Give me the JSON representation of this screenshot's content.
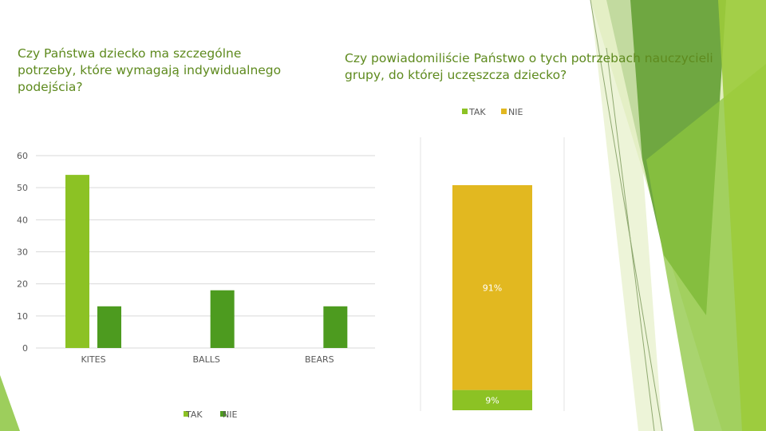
{
  "slide": {
    "title_left": "Czy Państwa dziecko ma szczególne\npotrzeby, które wymagają indywidualnego\npodejścia?",
    "title_right": "Czy powiadomiliście Państwo o tych potrzebach nauczycieli\ngrupy, do której uczęszcza dziecko?"
  },
  "colors": {
    "tak_light": "#8cc224",
    "tak_dark": "#4d9b1f",
    "nie": "#e2b820",
    "title": "#5e8a1e",
    "decor_green": "#8cc63f",
    "decor_dark": "#5a9a2a"
  },
  "chart_data": [
    {
      "type": "bar",
      "title": "",
      "categories": [
        "KITES",
        "BALLS",
        "BEARS"
      ],
      "series": [
        {
          "name": "TAK",
          "values": [
            54,
            null,
            null
          ]
        },
        {
          "name": "NIE",
          "values": [
            13,
            18,
            13
          ]
        }
      ],
      "yticks": [
        "0",
        "10",
        "20",
        "30",
        "40",
        "50",
        "60"
      ],
      "ylim": [
        0,
        60
      ],
      "grid": true,
      "legend": {
        "position": "bottom",
        "items": [
          "TAK",
          "NIE"
        ]
      }
    },
    {
      "type": "bar",
      "stacked": true,
      "title": "",
      "series": [
        {
          "name": "TAK",
          "value": 9,
          "label": "9%"
        },
        {
          "name": "NIE",
          "value": 91,
          "label": "91%"
        }
      ],
      "ylim": [
        0,
        100
      ],
      "legend": {
        "position": "top",
        "items": [
          "TAK",
          "NIE"
        ]
      }
    }
  ]
}
